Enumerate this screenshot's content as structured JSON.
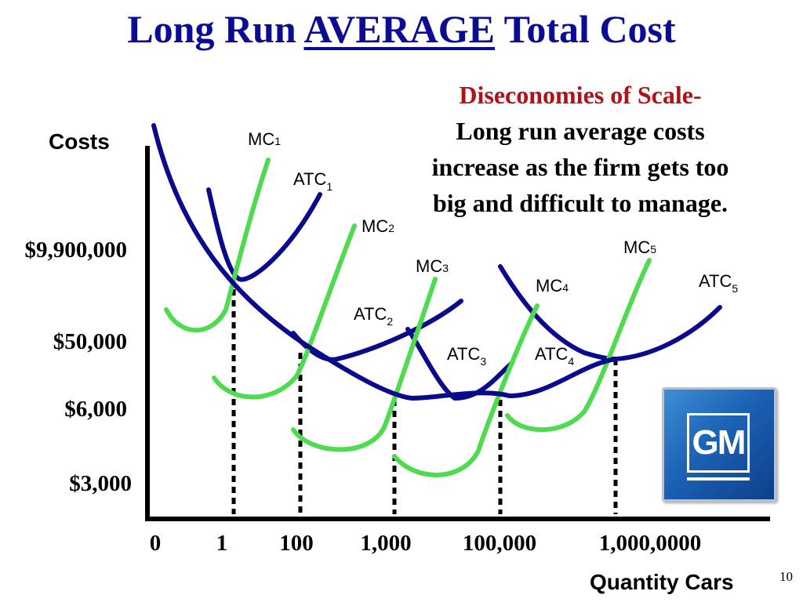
{
  "title": {
    "prefix": "Long Run ",
    "emph": "AVERAGE",
    "suffix": " Total Cost"
  },
  "note": {
    "heading": "Diseconomies of Scale-",
    "lines": [
      "Long run average costs",
      "increase as the firm gets too",
      "big and difficult to manage."
    ]
  },
  "page_number": "10",
  "logo": {
    "text": "GM",
    "icon": "gm-logo-icon"
  },
  "colors": {
    "title": "#0b0b93",
    "heading": "#b01218",
    "atc": "#0a0a8c",
    "mc": "#4fdb4f",
    "axis": "#000000"
  },
  "chart_data": {
    "type": "line",
    "title": "Long Run AVERAGE Total Cost",
    "ylabel": "Costs",
    "xlabel": "Quantity Cars",
    "x_ticks": [
      "0",
      "1",
      "100",
      "1,000",
      "100,000",
      "1,000,0000"
    ],
    "y_ticks": [
      "$9,900,000",
      "$50,000",
      "$6,000",
      "$3,000"
    ],
    "series": [
      {
        "name": "ATC1",
        "label": "ATC",
        "sub": "1",
        "kind": "ATC",
        "min_at": "1",
        "min_cost": "$9,900,000"
      },
      {
        "name": "MC1",
        "label": "MC",
        "sub": "1",
        "kind": "MC"
      },
      {
        "name": "ATC2",
        "label": "ATC",
        "sub": "2",
        "kind": "ATC",
        "min_at": "100",
        "min_cost": "$50,000"
      },
      {
        "name": "MC2",
        "label": "MC",
        "sub": "2",
        "kind": "MC"
      },
      {
        "name": "ATC3",
        "label": "ATC",
        "sub": "3",
        "kind": "ATC",
        "min_at": "1,000",
        "min_cost": "$6,000"
      },
      {
        "name": "MC3",
        "label": "MC",
        "sub": "3",
        "kind": "MC"
      },
      {
        "name": "ATC4",
        "label": "ATC",
        "sub": "4",
        "kind": "ATC",
        "min_at": "100,000",
        "min_cost": "$6,000"
      },
      {
        "name": "MC4",
        "label": "MC",
        "sub": "4",
        "kind": "MC"
      },
      {
        "name": "ATC5",
        "label": "ATC",
        "sub": "5",
        "kind": "ATC",
        "min_at": "1,000,0000",
        "min_cost": "$50,000"
      },
      {
        "name": "MC5",
        "label": "MC",
        "sub": "5",
        "kind": "MC"
      },
      {
        "name": "LRATC",
        "kind": "LRATC"
      }
    ],
    "grid": false,
    "legend": "none"
  }
}
